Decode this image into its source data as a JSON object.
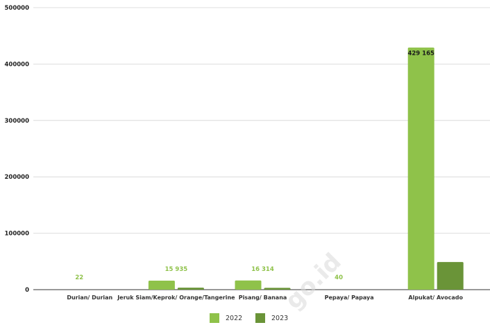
{
  "watermark": "go.id",
  "chart_data": {
    "type": "bar",
    "categories": [
      "Durian/ Durian",
      "Jeruk Siam/Keprok/ Orange/Tangerine",
      "Pisang/ Banana",
      "Pepaya/ Papaya",
      "Alpukat/ Avocado"
    ],
    "series": [
      {
        "name": "2022",
        "color": "#8fc24a",
        "values": [
          22,
          15935,
          16314,
          40,
          429165
        ],
        "labels": [
          "22",
          "15 935",
          "16 314",
          "40",
          "429 165"
        ]
      },
      {
        "name": "2023",
        "color": "#6a9438",
        "values": [
          0,
          3500,
          3200,
          0,
          49000
        ]
      }
    ],
    "ylim": [
      0,
      500000
    ],
    "yticks": [
      0,
      100000,
      200000,
      300000,
      400000,
      500000
    ],
    "ytick_labels": [
      "0",
      "100000",
      "200000",
      "300000",
      "400000",
      "500000"
    ],
    "grid": true,
    "legend": "bottom-center"
  }
}
